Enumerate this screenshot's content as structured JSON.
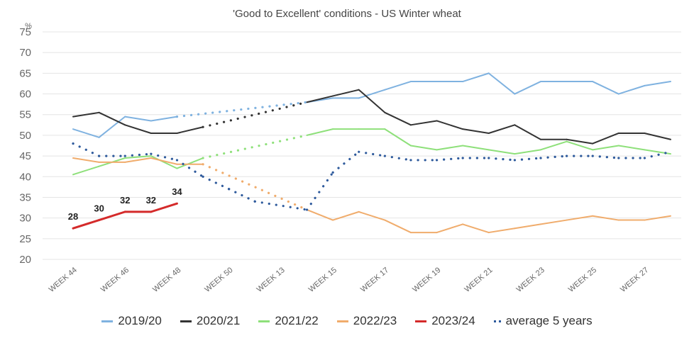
{
  "chart_data": {
    "type": "line",
    "title": "'Good to Excellent' conditions - US Winter wheat",
    "ylabel": "%",
    "xlabel": "",
    "ylim": [
      20,
      75
    ],
    "yticks": [
      20,
      25,
      30,
      35,
      40,
      45,
      50,
      55,
      60,
      65,
      70,
      75
    ],
    "x": [
      "44",
      "45",
      "46",
      "47",
      "48",
      "49",
      "50",
      "51",
      "52",
      "13",
      "14",
      "15",
      "16",
      "17",
      "18",
      "19",
      "20",
      "21",
      "22",
      "23",
      "24",
      "25",
      "26",
      "27"
    ],
    "x_tick_labels": [
      "WEEK 44",
      "WEEK 46",
      "WEEK 48",
      "WEEK 50",
      "WEEK 13",
      "WEEK 15",
      "WEEK 17",
      "WEEK 19",
      "WEEK 21",
      "WEEK 23",
      "WEEK 25",
      "WEEK 27"
    ],
    "grid": "horizontal",
    "legend_position": "bottom",
    "gap_note": "values between week 48 and week 13 are connected by dotted interpolation lines",
    "series": [
      {
        "name": "2019/20",
        "color": "#7fb2e0",
        "values": [
          51.5,
          49.5,
          54.5,
          53.5,
          54.5,
          null,
          null,
          null,
          null,
          58,
          59,
          59,
          61,
          63,
          63,
          63,
          65,
          60,
          63,
          63,
          63,
          60,
          62,
          63
        ]
      },
      {
        "name": "2020/21",
        "color": "#333333",
        "values": [
          54.5,
          55.5,
          52.5,
          50.5,
          50.5,
          52,
          null,
          null,
          null,
          58,
          59.5,
          61,
          55.5,
          52.5,
          53.5,
          51.5,
          50.5,
          52.5,
          49,
          49,
          48,
          50.5,
          50.5,
          49
        ]
      },
      {
        "name": "2021/22",
        "color": "#8ee07a",
        "values": [
          40.5,
          42.5,
          44.5,
          45,
          42,
          44.5,
          null,
          null,
          null,
          50,
          51.5,
          51.5,
          51.5,
          47.5,
          46.5,
          47.5,
          46.5,
          45.5,
          46.5,
          48.5,
          46.5,
          47.5,
          46.5,
          45.5
        ]
      },
      {
        "name": "2022/23",
        "color": "#f0ac6c",
        "values": [
          44.5,
          43.5,
          43.5,
          44.5,
          43,
          43,
          null,
          null,
          null,
          32,
          29.5,
          31.5,
          29.5,
          26.5,
          26.5,
          28.5,
          26.5,
          27.5,
          28.5,
          29.5,
          30.5,
          29.5,
          29.5,
          30.5
        ]
      },
      {
        "name": "2023/24",
        "color": "#d42a2a",
        "values": [
          27.5,
          29.5,
          31.5,
          31.5,
          33.5,
          null,
          null,
          null,
          null,
          null,
          null,
          null,
          null,
          null,
          null,
          null,
          null,
          null,
          null,
          null,
          null,
          null,
          null,
          null
        ],
        "data_labels": [
          "28",
          "30",
          "32",
          "32",
          "34"
        ]
      },
      {
        "name": "average 5 years",
        "color": "#2e5a9c",
        "style": "dotted",
        "values": [
          48,
          45,
          45,
          45.5,
          44,
          40,
          37,
          34,
          null,
          32,
          41,
          46,
          45,
          44,
          44,
          44.5,
          44.5,
          44,
          44.5,
          45,
          45,
          44.5,
          44.5,
          46
        ]
      }
    ]
  }
}
